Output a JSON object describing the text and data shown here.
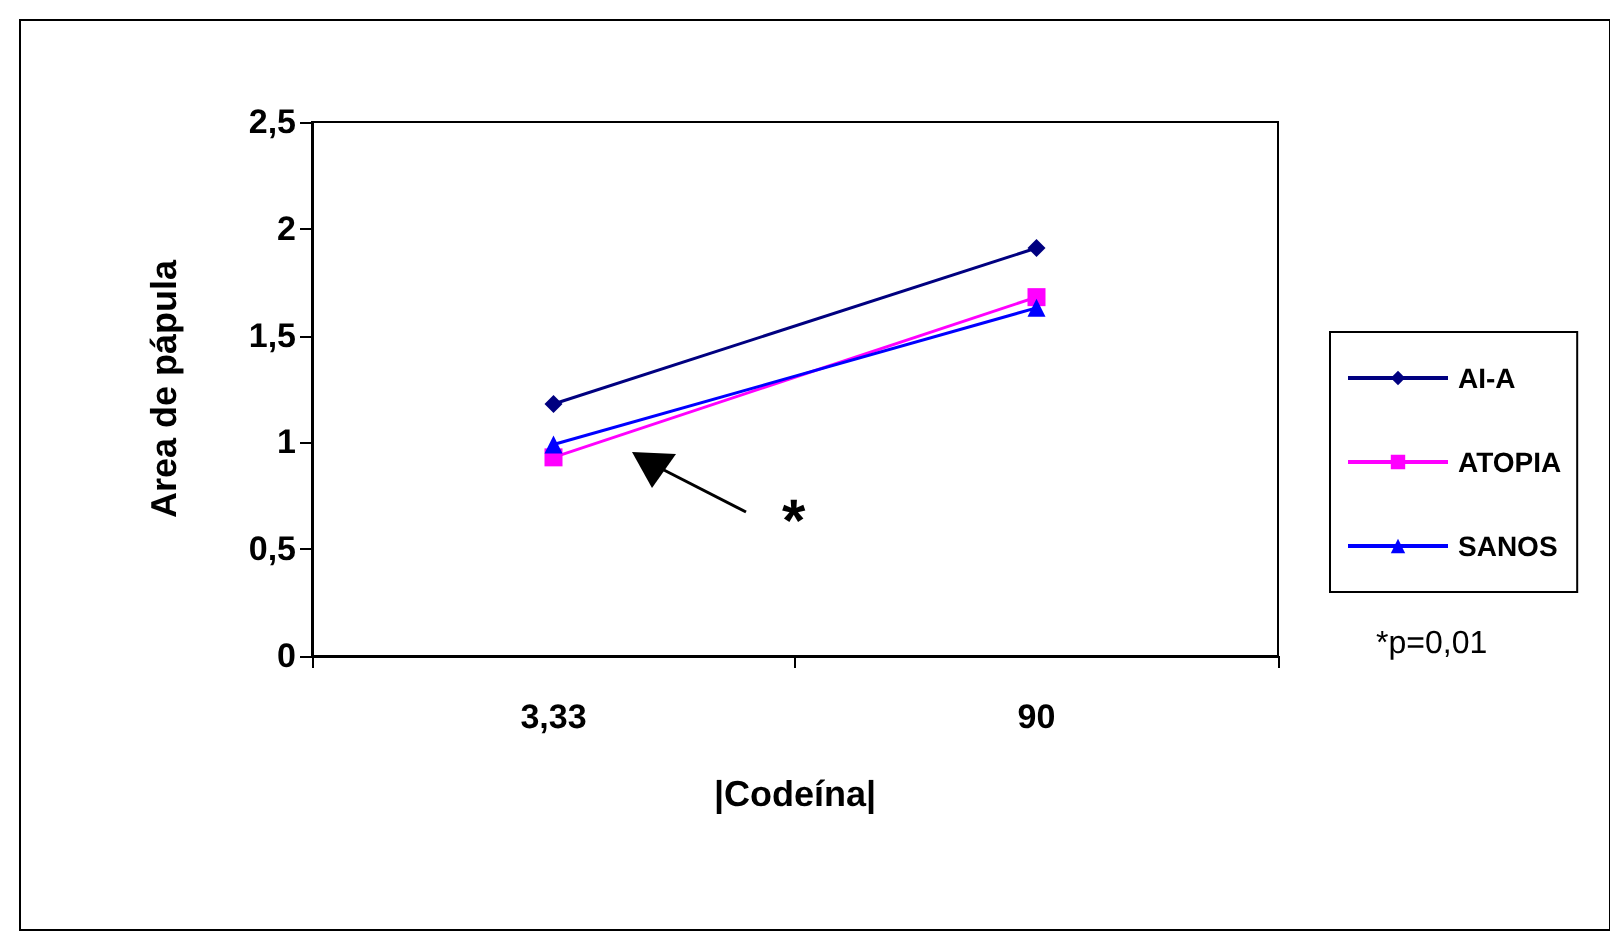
{
  "chart_data": {
    "type": "line",
    "xlabel": "|Codeína|",
    "ylabel": "Area de pápula",
    "categories": [
      "3,33",
      "90"
    ],
    "series": [
      {
        "name": "AI-A",
        "color": "#000080",
        "marker": "diamond",
        "values": [
          1.18,
          1.91
        ]
      },
      {
        "name": "ATOPIA",
        "color": "#ff00ff",
        "marker": "square",
        "values": [
          0.93,
          1.68
        ]
      },
      {
        "name": "SANOS",
        "color": "#0000ff",
        "marker": "triangle",
        "values": [
          0.99,
          1.63
        ]
      }
    ],
    "ylim": [
      0,
      2.5
    ],
    "yticks": [
      0,
      {
        "value": 0.5,
        "label": "0,5"
      },
      1,
      {
        "value": 1.5,
        "label": "1,5"
      },
      2,
      {
        "value": 2.5,
        "label": "2,5"
      }
    ],
    "grid": false,
    "legend": "right",
    "annotations": [
      "*",
      "*p=0,01"
    ]
  }
}
